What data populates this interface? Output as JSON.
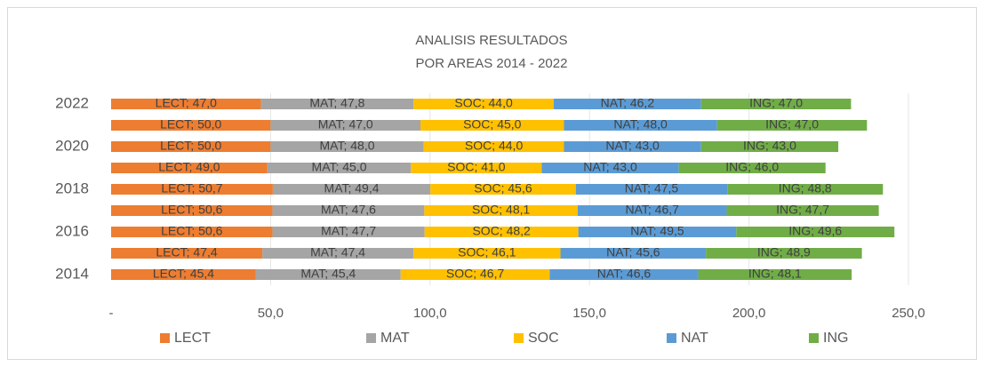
{
  "chart_data": {
    "type": "stacked-barh",
    "title": [
      "ANALISIS RESULTADOS",
      "POR AREAS 2014 - 2022"
    ],
    "categories": [
      "2014",
      null,
      "2016",
      null,
      "2018",
      null,
      "2020",
      null,
      "2022"
    ],
    "series": [
      {
        "name": "LECT",
        "color": "#ed7d31",
        "values": [
          45.4,
          47.4,
          50.6,
          50.6,
          50.7,
          49.0,
          50.0,
          50.0,
          47.0
        ],
        "value_labels": [
          "LECT; 45,4",
          "LECT; 47,4",
          "LECT; 50,6",
          "LECT; 50,6",
          "LECT; 50,7",
          "LECT; 49,0",
          "LECT; 50,0",
          "LECT; 50,0",
          "LECT; 47,0"
        ]
      },
      {
        "name": "MAT",
        "color": "#a5a5a5",
        "values": [
          45.4,
          47.4,
          47.7,
          47.6,
          49.4,
          45.0,
          48.0,
          47.0,
          47.8
        ],
        "value_labels": [
          "MAT; 45,4",
          "MAT; 47,4",
          "MAT; 47,7",
          "MAT; 47,6",
          "MAT; 49,4",
          "MAT; 45,0",
          "MAT; 48,0",
          "MAT; 47,0",
          "MAT; 47,8"
        ]
      },
      {
        "name": "SOC",
        "color": "#ffc000",
        "values": [
          46.7,
          46.1,
          48.2,
          48.1,
          45.6,
          41.0,
          44.0,
          45.0,
          44.0
        ],
        "value_labels": [
          "SOC; 46,7",
          "SOC; 46,1",
          "SOC; 48,2",
          "SOC; 48,1",
          "SOC; 45,6",
          "SOC; 41,0",
          "SOC; 44,0",
          "SOC; 45,0",
          "SOC; 44,0"
        ]
      },
      {
        "name": "NAT",
        "color": "#5b9bd5",
        "values": [
          46.6,
          45.6,
          49.5,
          46.7,
          47.5,
          43.0,
          43.0,
          48.0,
          46.2
        ],
        "value_labels": [
          "NAT; 46,6",
          "NAT; 45,6",
          "NAT; 49,5",
          "NAT; 46,7",
          "NAT; 47,5",
          "NAT; 43,0",
          "NAT; 43,0",
          "NAT; 48,0",
          "NAT; 46,2"
        ]
      },
      {
        "name": "ING",
        "color": "#70ad47",
        "values": [
          48.1,
          48.9,
          49.6,
          47.7,
          48.8,
          46.0,
          43.0,
          47.0,
          47.0
        ],
        "value_labels": [
          "ING; 48,1",
          "ING; 48,9",
          "ING; 49,6",
          "ING; 47,7",
          "ING; 48,8",
          "ING; 46,0",
          "ING; 43,0",
          "ING; 47,0",
          "ING; 47,0"
        ]
      }
    ],
    "xlim": [
      0,
      250
    ],
    "xticks": [
      {
        "value": 0,
        "label": "-"
      },
      {
        "value": 50,
        "label": "50,0"
      },
      {
        "value": 100,
        "label": "100,0"
      },
      {
        "value": 150,
        "label": "150,0"
      },
      {
        "value": 200,
        "label": "200,0"
      },
      {
        "value": 250,
        "label": "250,0"
      }
    ],
    "grid": true,
    "legend": "bottom"
  }
}
